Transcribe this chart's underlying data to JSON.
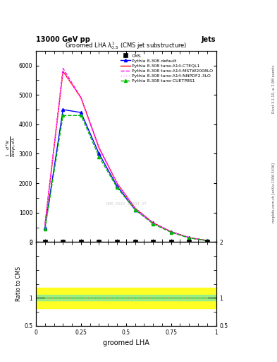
{
  "title": "Groomed LHA $\\lambda^{1}_{0.5}$ (CMS jet substructure)",
  "header_left": "13000 GeV pp",
  "header_right": "Jets",
  "xlabel": "groomed LHA",
  "watermark": "CMS_2021_11584_07",
  "right_label_top": "Rivet 3.1.10, ≥ 2.9M events",
  "right_label_bottom": "mcplots.cern.ch [arXiv:1306.3436]",
  "x_data": [
    0.05,
    0.15,
    0.25,
    0.35,
    0.45,
    0.55,
    0.65,
    0.75,
    0.85,
    0.95
  ],
  "lines": [
    {
      "label": "Pythia 8.308 default",
      "color": "#0000ff",
      "linestyle": "solid",
      "marker": "^",
      "markersize": 3,
      "y": [
        500,
        4500,
        4400,
        3000,
        1900,
        1100,
        650,
        350,
        150,
        50
      ]
    },
    {
      "label": "Pythia 8.308 tune-A14-CTEQL1",
      "color": "#ff0000",
      "linestyle": "solid",
      "marker": null,
      "markersize": 0,
      "y": [
        600,
        5800,
        4900,
        3200,
        2000,
        1150,
        650,
        350,
        150,
        50
      ]
    },
    {
      "label": "Pythia 8.308 tune-A14-MSTW2008LO",
      "color": "#ff00ff",
      "linestyle": "dashed",
      "marker": null,
      "markersize": 0,
      "y": [
        600,
        5900,
        4900,
        3200,
        2000,
        1150,
        650,
        350,
        150,
        50
      ]
    },
    {
      "label": "Pythia 8.308 tune-A14-NNPDF2.3LO",
      "color": "#ff88ff",
      "linestyle": "dotted",
      "marker": null,
      "markersize": 0,
      "y": [
        600,
        5850,
        4850,
        3150,
        1980,
        1130,
        630,
        340,
        140,
        50
      ]
    },
    {
      "label": "Pythia 8.308 tune-CUETP8S1",
      "color": "#00bb00",
      "linestyle": "dashed",
      "marker": "^",
      "markersize": 3,
      "y": [
        450,
        4300,
        4300,
        2900,
        1850,
        1100,
        620,
        330,
        140,
        50
      ]
    }
  ],
  "ylim_main": [
    0,
    6500
  ],
  "ylim_ratio": [
    0.5,
    2.0
  ],
  "xlim": [
    0.0,
    1.0
  ],
  "yticks_main": [
    0,
    1000,
    2000,
    3000,
    4000,
    5000,
    6000
  ],
  "ytick_labels_main": [
    "0",
    "000",
    "000",
    "000",
    "000",
    "000",
    "000"
  ],
  "ytick_prefix": [
    "",
    "1",
    "2",
    "3",
    "4",
    "5",
    "6"
  ],
  "yticks_ratio": [
    0.5,
    1.0,
    2.0
  ],
  "ytick_labels_ratio": [
    "0.5",
    "1",
    "2"
  ],
  "cms_marker_color": "#000000",
  "cms_marker_size": 4,
  "band_green_lo": 0.95,
  "band_green_hi": 1.05,
  "band_yellow_lo": 0.82,
  "band_yellow_hi": 1.18,
  "background_color": "#ffffff"
}
